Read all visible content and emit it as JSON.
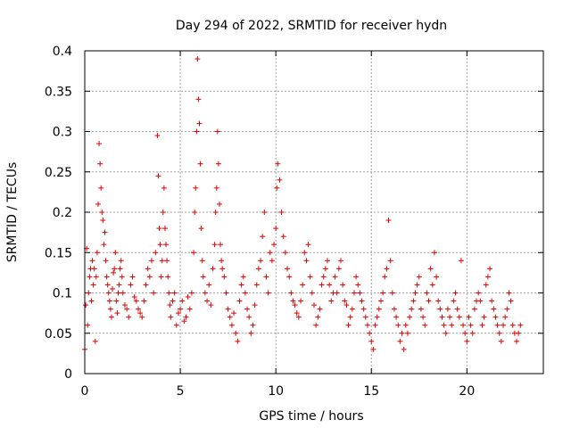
{
  "chart_data": {
    "type": "scatter",
    "title": "Day 294 of 2022, SRMTID for receiver hydn",
    "xlabel": "GPS time / hours",
    "ylabel": "SRMTID / TECUs",
    "xlim": [
      0,
      24
    ],
    "ylim": [
      0,
      0.4
    ],
    "xticks": [
      0,
      5,
      10,
      15,
      20
    ],
    "xtick_labels": [
      "0",
      "5",
      "10",
      "15",
      "20"
    ],
    "yticks": [
      0,
      0.05,
      0.1,
      0.15,
      0.2,
      0.25,
      0.3,
      0.35,
      0.4
    ],
    "ytick_labels": [
      "0",
      "0.05",
      "0.1",
      "0.15",
      "0.2",
      "0.25",
      "0.3",
      "0.35",
      "0.4"
    ],
    "grid": true,
    "marker": "+",
    "color": "#e00000",
    "series": [
      {
        "name": "SRMTID",
        "x": [
          0.0,
          0.05,
          0.1,
          0.15,
          0.2,
          0.25,
          0.3,
          0.35,
          0.4,
          0.45,
          0.5,
          0.55,
          0.6,
          0.65,
          0.7,
          0.75,
          0.8,
          0.85,
          0.9,
          0.95,
          1.0,
          1.05,
          1.1,
          1.15,
          1.2,
          1.25,
          1.3,
          1.35,
          1.4,
          1.45,
          1.5,
          1.55,
          1.6,
          1.65,
          1.7,
          1.75,
          1.8,
          1.85,
          1.9,
          1.95,
          2.0,
          2.1,
          2.2,
          2.3,
          2.4,
          2.5,
          2.6,
          2.7,
          2.8,
          2.9,
          3.0,
          3.1,
          3.2,
          3.3,
          3.4,
          3.5,
          3.6,
          3.7,
          3.8,
          3.85,
          3.9,
          3.95,
          4.0,
          4.05,
          4.1,
          4.15,
          4.2,
          4.25,
          4.3,
          4.35,
          4.4,
          4.45,
          4.5,
          4.6,
          4.7,
          4.8,
          4.9,
          5.0,
          5.1,
          5.2,
          5.3,
          5.4,
          5.5,
          5.6,
          5.7,
          5.75,
          5.8,
          5.85,
          5.9,
          5.95,
          6.0,
          6.05,
          6.1,
          6.15,
          6.2,
          6.3,
          6.4,
          6.5,
          6.6,
          6.7,
          6.8,
          6.85,
          6.9,
          6.95,
          7.0,
          7.05,
          7.1,
          7.15,
          7.2,
          7.3,
          7.4,
          7.5,
          7.6,
          7.7,
          7.8,
          7.9,
          8.0,
          8.1,
          8.2,
          8.3,
          8.4,
          8.5,
          8.6,
          8.7,
          8.8,
          8.9,
          9.0,
          9.1,
          9.2,
          9.3,
          9.4,
          9.5,
          9.6,
          9.7,
          9.8,
          9.9,
          10.0,
          10.05,
          10.1,
          10.2,
          10.3,
          10.4,
          10.5,
          10.6,
          10.7,
          10.8,
          10.9,
          11.0,
          11.1,
          11.2,
          11.3,
          11.4,
          11.5,
          11.6,
          11.7,
          11.8,
          11.9,
          12.0,
          12.1,
          12.2,
          12.3,
          12.4,
          12.5,
          12.6,
          12.7,
          12.8,
          12.9,
          13.0,
          13.1,
          13.2,
          13.3,
          13.4,
          13.5,
          13.6,
          13.7,
          13.8,
          13.9,
          14.0,
          14.1,
          14.2,
          14.3,
          14.4,
          14.5,
          14.6,
          14.7,
          14.8,
          14.9,
          15.0,
          15.1,
          15.2,
          15.3,
          15.4,
          15.5,
          15.6,
          15.7,
          15.8,
          15.9,
          16.0,
          16.1,
          16.2,
          16.3,
          16.4,
          16.5,
          16.6,
          16.7,
          16.8,
          16.9,
          17.0,
          17.1,
          17.2,
          17.3,
          17.4,
          17.5,
          17.6,
          17.7,
          17.8,
          17.9,
          18.0,
          18.1,
          18.2,
          18.3,
          18.4,
          18.5,
          18.6,
          18.7,
          18.8,
          18.9,
          19.0,
          19.1,
          19.2,
          19.3,
          19.4,
          19.5,
          19.6,
          19.7,
          19.8,
          19.9,
          20.0,
          20.1,
          20.2,
          20.3,
          20.4,
          20.5,
          20.6,
          20.7,
          20.8,
          20.9,
          21.0,
          21.1,
          21.2,
          21.3,
          21.4,
          21.5,
          21.6,
          21.7,
          21.8,
          21.9,
          22.0,
          22.1,
          22.2,
          22.3,
          22.4,
          22.5,
          22.6,
          22.7,
          22.8
        ],
        "y": [
          0.03,
          0.085,
          0.155,
          0.06,
          0.1,
          0.12,
          0.13,
          0.09,
          0.14,
          0.11,
          0.13,
          0.04,
          0.12,
          0.15,
          0.21,
          0.285,
          0.26,
          0.23,
          0.2,
          0.19,
          0.16,
          0.175,
          0.14,
          0.12,
          0.11,
          0.1,
          0.09,
          0.08,
          0.07,
          0.105,
          0.125,
          0.13,
          0.15,
          0.09,
          0.075,
          0.1,
          0.11,
          0.13,
          0.14,
          0.12,
          0.1,
          0.085,
          0.08,
          0.07,
          0.11,
          0.12,
          0.095,
          0.09,
          0.08,
          0.075,
          0.07,
          0.09,
          0.11,
          0.13,
          0.12,
          0.14,
          0.1,
          0.15,
          0.295,
          0.245,
          0.18,
          0.16,
          0.12,
          0.14,
          0.2,
          0.23,
          0.18,
          0.16,
          0.14,
          0.12,
          0.1,
          0.085,
          0.07,
          0.09,
          0.1,
          0.06,
          0.075,
          0.08,
          0.09,
          0.065,
          0.07,
          0.095,
          0.08,
          0.1,
          0.15,
          0.2,
          0.23,
          0.3,
          0.39,
          0.34,
          0.31,
          0.26,
          0.18,
          0.14,
          0.12,
          0.1,
          0.09,
          0.11,
          0.085,
          0.13,
          0.16,
          0.2,
          0.23,
          0.3,
          0.26,
          0.21,
          0.16,
          0.14,
          0.13,
          0.12,
          0.1,
          0.08,
          0.07,
          0.06,
          0.075,
          0.05,
          0.04,
          0.09,
          0.11,
          0.12,
          0.1,
          0.08,
          0.07,
          0.05,
          0.06,
          0.085,
          0.11,
          0.13,
          0.14,
          0.17,
          0.2,
          0.12,
          0.1,
          0.15,
          0.14,
          0.16,
          0.18,
          0.23,
          0.26,
          0.24,
          0.2,
          0.17,
          0.15,
          0.13,
          0.12,
          0.1,
          0.09,
          0.085,
          0.075,
          0.07,
          0.09,
          0.11,
          0.15,
          0.14,
          0.16,
          0.12,
          0.1,
          0.085,
          0.06,
          0.07,
          0.08,
          0.11,
          0.12,
          0.13,
          0.14,
          0.11,
          0.09,
          0.1,
          0.12,
          0.1,
          0.13,
          0.14,
          0.11,
          0.09,
          0.085,
          0.06,
          0.07,
          0.08,
          0.1,
          0.12,
          0.11,
          0.1,
          0.09,
          0.08,
          0.07,
          0.06,
          0.05,
          0.04,
          0.03,
          0.06,
          0.07,
          0.08,
          0.09,
          0.1,
          0.12,
          0.13,
          0.19,
          0.14,
          0.1,
          0.08,
          0.07,
          0.06,
          0.04,
          0.05,
          0.03,
          0.06,
          0.05,
          0.07,
          0.08,
          0.09,
          0.1,
          0.11,
          0.12,
          0.08,
          0.07,
          0.06,
          0.1,
          0.09,
          0.13,
          0.11,
          0.15,
          0.12,
          0.09,
          0.08,
          0.07,
          0.06,
          0.05,
          0.08,
          0.07,
          0.06,
          0.09,
          0.1,
          0.08,
          0.07,
          0.14,
          0.06,
          0.05,
          0.04,
          0.07,
          0.06,
          0.05,
          0.08,
          0.09,
          0.1,
          0.09,
          0.06,
          0.07,
          0.11,
          0.12,
          0.13,
          0.09,
          0.08,
          0.07,
          0.06,
          0.05,
          0.04,
          0.06,
          0.07,
          0.08,
          0.1,
          0.09,
          0.06,
          0.05,
          0.04,
          0.05,
          0.06
        ]
      }
    ]
  }
}
